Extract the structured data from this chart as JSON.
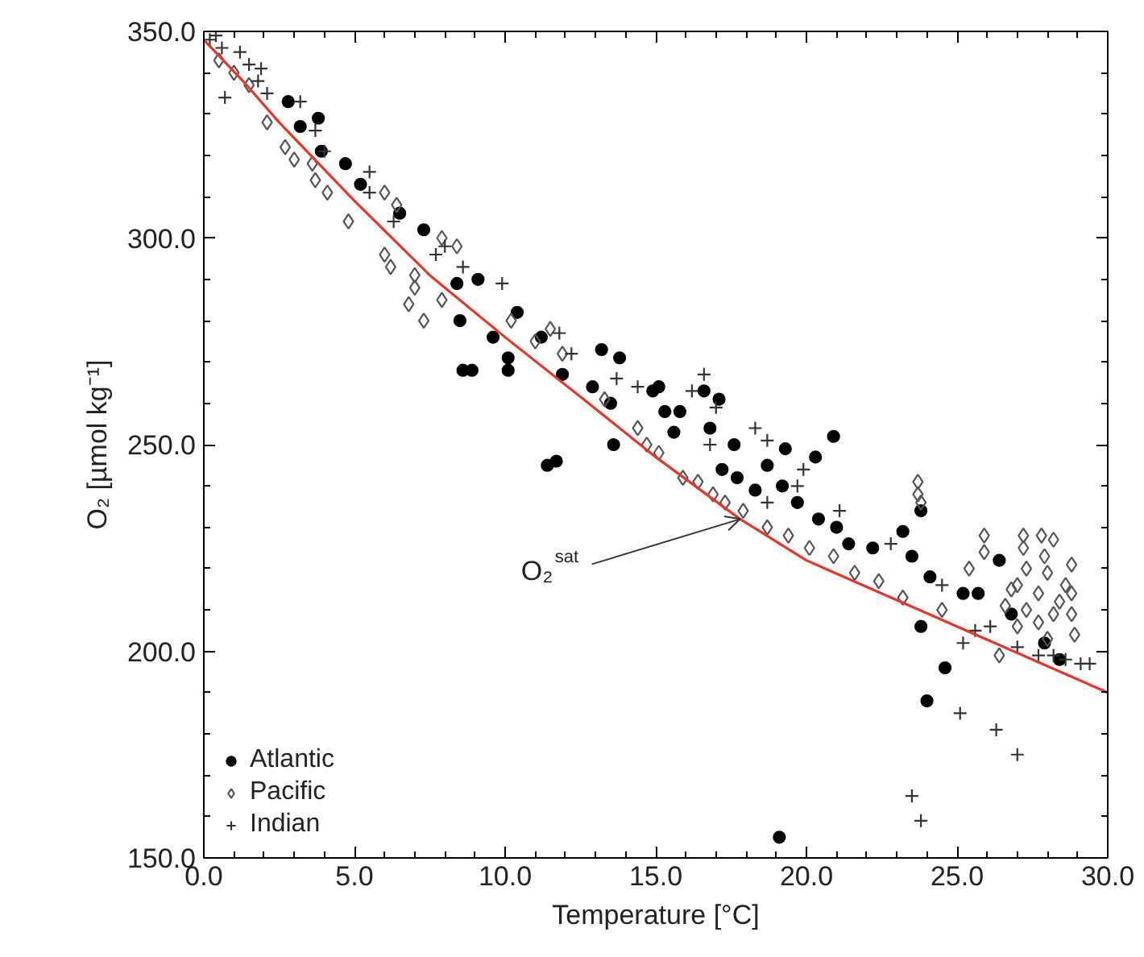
{
  "chart_data": {
    "type": "scatter",
    "xlabel": "Temperature [°C]",
    "ylabel": "O₂ [µmol kg⁻¹]",
    "xlim": [
      0,
      30
    ],
    "xticks": [
      {
        "value": 0,
        "label": "0.0"
      },
      {
        "value": 5,
        "label": "5.0"
      },
      {
        "value": 10,
        "label": "10.0"
      },
      {
        "value": 15,
        "label": "15.0"
      },
      {
        "value": 20,
        "label": "20.0"
      },
      {
        "value": 25,
        "label": "25.0"
      },
      {
        "value": 30,
        "label": "30.0"
      }
    ],
    "ylim": [
      150,
      350
    ],
    "yticks": [
      {
        "value": 150,
        "label": "150.0"
      },
      {
        "value": 200,
        "label": "200.0"
      },
      {
        "value": 250,
        "label": "250.0"
      },
      {
        "value": 300,
        "label": "300.0"
      },
      {
        "value": 350,
        "label": "350.0"
      }
    ],
    "legend": "bottom left",
    "annotations": [
      {
        "text": "O₂$^{sat}$",
        "x": 17.8,
        "y": 232
      }
    ],
    "series": [
      {
        "name": "Atlantic",
        "marker": "circle",
        "color": "#000000",
        "x": [
          2.8,
          3.8,
          3.2,
          3.9,
          4.7,
          5.2,
          6.5,
          7.3,
          8.4,
          9.1,
          8.5,
          9.6,
          10.1,
          8.6,
          8.9,
          10.1,
          10.4,
          11.2,
          11.9,
          13.2,
          13.8,
          12.9,
          13.5,
          14.9,
          15.3,
          13.6,
          11.4,
          11.7,
          15.1,
          15.8,
          15.6,
          16.6,
          17.1,
          16.8,
          17.6,
          17.2,
          17.7,
          18.3,
          18.7,
          19.3,
          19.2,
          19.7,
          20.3,
          20.9,
          20.4,
          21.0,
          21.4,
          22.2,
          23.2,
          23.5,
          24.1,
          23.8,
          24.6,
          24.0,
          25.2,
          25.7,
          26.4,
          26.8,
          27.9,
          28.4,
          23.8,
          19.1
        ],
        "values": [
          333,
          329,
          327,
          321,
          318,
          313,
          306,
          302,
          289,
          290,
          280,
          276,
          271,
          268,
          268,
          268,
          282,
          276,
          267,
          273,
          271,
          264,
          260,
          263,
          258,
          250,
          245,
          246,
          264,
          258,
          253,
          263,
          261,
          254,
          250,
          244,
          242,
          239,
          245,
          249,
          240,
          236,
          247,
          252,
          232,
          230,
          226,
          225,
          229,
          223,
          218,
          206,
          196,
          188,
          214,
          214,
          222,
          209,
          202,
          198,
          234,
          155
        ]
      },
      {
        "name": "Pacific",
        "marker": "diamond",
        "color": "#555555",
        "x": [
          0.5,
          1.0,
          1.5,
          2.1,
          2.7,
          3.0,
          3.6,
          3.7,
          4.1,
          4.8,
          6.0,
          6.0,
          6.2,
          7.0,
          7.0,
          6.8,
          7.3,
          6.4,
          7.9,
          8.4,
          7.9,
          10.2,
          11.0,
          11.5,
          11.9,
          13.3,
          14.4,
          14.7,
          15.1,
          15.9,
          16.4,
          16.9,
          17.3,
          17.9,
          18.7,
          19.4,
          20.1,
          20.9,
          21.6,
          22.4,
          23.2,
          23.7,
          23.7,
          23.8,
          24.5,
          25.4,
          25.9,
          25.9,
          26.4,
          26.8,
          27.2,
          27.8,
          28.2,
          27.2,
          27.9,
          28.8,
          27.3,
          28.0,
          28.6,
          27.0,
          27.7,
          28.4,
          28.8,
          26.6,
          27.3,
          28.2,
          28.8,
          27.0,
          28.9,
          28.0,
          27.7
        ],
        "values": [
          343,
          340,
          337,
          328,
          322,
          319,
          318,
          314,
          311,
          304,
          311,
          296,
          293,
          291,
          288,
          284,
          280,
          308,
          300,
          298,
          285,
          280,
          275,
          278,
          272,
          261,
          254,
          250,
          248,
          242,
          241,
          238,
          236,
          234,
          230,
          228,
          225,
          223,
          219,
          217,
          213,
          241,
          238,
          236,
          210,
          220,
          224,
          228,
          199,
          215,
          228,
          228,
          227,
          225,
          223,
          221,
          220,
          219,
          216,
          216,
          214,
          212,
          214,
          211,
          210,
          209,
          209,
          206,
          204,
          203,
          207
        ]
      },
      {
        "name": "Indian",
        "marker": "cross",
        "color": "#333333",
        "x": [
          0.2,
          0.4,
          0.6,
          0.7,
          1.2,
          1.5,
          1.9,
          1.8,
          2.1,
          3.2,
          3.7,
          4.0,
          5.5,
          5.5,
          6.3,
          8.0,
          7.7,
          8.6,
          9.9,
          11.8,
          12.2,
          13.7,
          14.4,
          16.6,
          16.2,
          17.0,
          16.8,
          18.3,
          18.7,
          19.9,
          19.7,
          18.7,
          21.1,
          22.8,
          24.5,
          26.1,
          27.0,
          27.7,
          28.2,
          28.6,
          29.1,
          29.4,
          25.2,
          25.6,
          23.5,
          23.8,
          25.1,
          26.3,
          27.0
        ],
        "values": [
          348,
          349,
          346,
          334,
          345,
          342,
          341,
          338,
          335,
          333,
          326,
          321,
          316,
          311,
          304,
          298,
          296,
          293,
          289,
          277,
          272,
          266,
          264,
          267,
          263,
          259,
          250,
          254,
          251,
          244,
          240,
          236,
          234,
          226,
          216,
          206,
          201,
          199,
          199,
          198,
          197,
          197,
          202,
          205,
          165,
          159,
          185,
          181,
          175
        ]
      },
      {
        "type": "line",
        "color": "#e0392b",
        "x": [
          0,
          1.3,
          2.5,
          5,
          7.5,
          10,
          12.6,
          15,
          17.8,
          20,
          22.5,
          25,
          27.5,
          30
        ],
        "values": [
          348,
          338,
          328,
          309,
          291,
          276,
          261,
          247,
          232,
          222,
          214,
          206,
          198,
          190
        ]
      }
    ]
  }
}
